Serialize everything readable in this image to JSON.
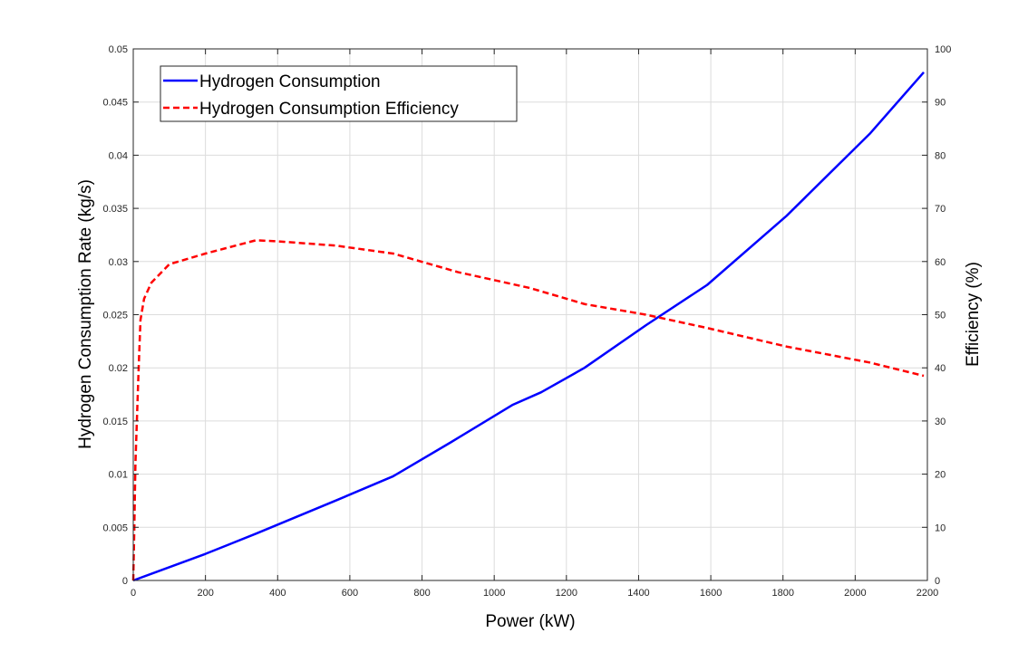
{
  "chart_data": {
    "type": "line",
    "title": "",
    "xlabel": "Power (kW)",
    "ylabel": "Hydrogen Consumption Rate (kg/s)",
    "y2label": "Efficiency (%)",
    "xlim": [
      0,
      2200
    ],
    "ylim": [
      0,
      0.05
    ],
    "y2lim": [
      0,
      100
    ],
    "xticks": [
      0,
      200,
      400,
      600,
      800,
      1000,
      1200,
      1400,
      1600,
      1800,
      2000,
      2200
    ],
    "yticks": [
      0,
      0.005,
      0.01,
      0.015,
      0.02,
      0.025,
      0.03,
      0.035,
      0.04,
      0.045,
      0.05
    ],
    "yticks_labels": [
      "0",
      "0.005",
      "0.01",
      "0.015",
      "0.02",
      "0.025",
      "0.03",
      "0.035",
      "0.04",
      "0.045",
      "0.05"
    ],
    "y2ticks": [
      0,
      10,
      20,
      30,
      40,
      50,
      60,
      70,
      80,
      90,
      100
    ],
    "grid": true,
    "legend_position": "top-left",
    "series": [
      {
        "name": "Hydrogen Consumption",
        "axis": "left",
        "style": "solid",
        "color": "#0000ff",
        "x": [
          0,
          200,
          340,
          560,
          720,
          880,
          1050,
          1130,
          1250,
          1420,
          1590,
          1810,
          2040,
          2190
        ],
        "y": [
          0,
          0.0025,
          0.0044,
          0.0075,
          0.0098,
          0.013,
          0.0165,
          0.0177,
          0.02,
          0.024,
          0.0278,
          0.0343,
          0.042,
          0.0478
        ]
      },
      {
        "name": "Hydrogen Consumption Efficiency",
        "axis": "right",
        "style": "dashed",
        "color": "#ff0000",
        "x": [
          0,
          3,
          6,
          10,
          15,
          20,
          30,
          50,
          100,
          200,
          340,
          400,
          560,
          720,
          900,
          1100,
          1250,
          1420,
          1590,
          1810,
          2040,
          2190
        ],
        "y": [
          0,
          10,
          22,
          30,
          40,
          49,
          53,
          56,
          59.5,
          61.5,
          64,
          63.8,
          63,
          61.5,
          58,
          55,
          52,
          50,
          47.5,
          44,
          41,
          38.5
        ]
      }
    ]
  }
}
